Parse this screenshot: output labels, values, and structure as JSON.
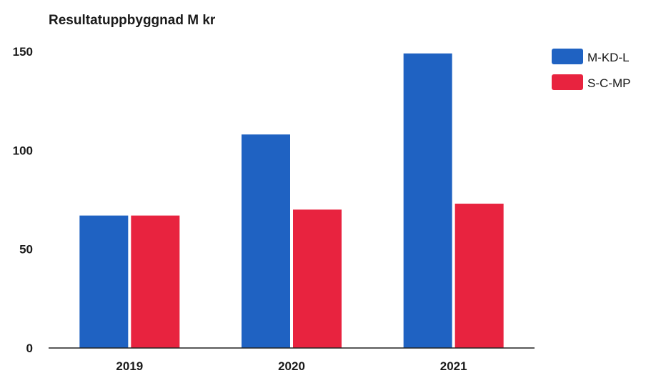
{
  "chart_data": {
    "type": "bar",
    "title": "Resultatuppbyggnad M kr",
    "xlabel": "",
    "ylabel": "",
    "categories": [
      "2019",
      "2020",
      "2021"
    ],
    "series": [
      {
        "name": "M-KD-L",
        "values": [
          67,
          108,
          149
        ],
        "color": "#1f62c2"
      },
      {
        "name": "S-C-MP",
        "values": [
          67,
          70,
          73
        ],
        "color": "#e8233f"
      }
    ],
    "yticks": [
      0,
      50,
      100,
      150
    ],
    "ylim": [
      0,
      150
    ],
    "grid": false,
    "legend": "top-right"
  }
}
